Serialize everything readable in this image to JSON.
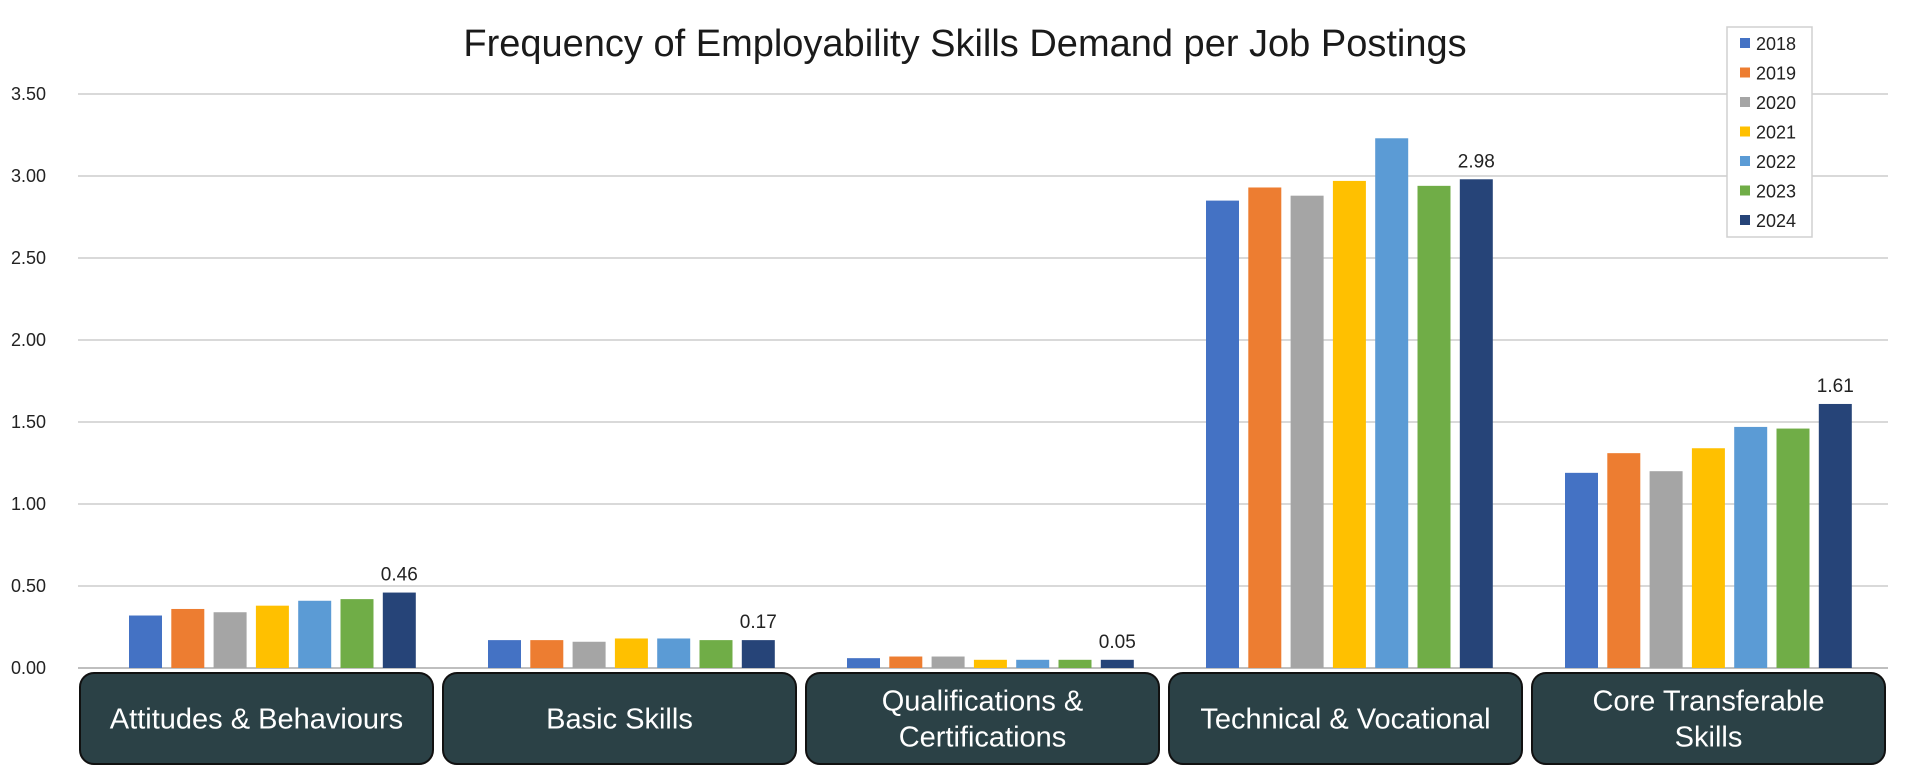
{
  "chart_data": {
    "type": "bar",
    "title": "Frequency of Employability Skills Demand per Job Postings",
    "categories": [
      [
        "Attitudes & Behaviours"
      ],
      [
        "Basic Skills"
      ],
      [
        "Qualifications &",
        "Certifications"
      ],
      [
        "Technical & Vocational"
      ],
      [
        "Core Transferable",
        "Skills"
      ]
    ],
    "series": [
      {
        "name": "2018",
        "color": "#4472C4",
        "values": [
          0.32,
          0.17,
          0.06,
          2.85,
          1.19
        ]
      },
      {
        "name": "2019",
        "color": "#ED7D31",
        "values": [
          0.36,
          0.17,
          0.07,
          2.93,
          1.31
        ]
      },
      {
        "name": "2020",
        "color": "#A5A5A5",
        "values": [
          0.34,
          0.16,
          0.07,
          2.88,
          1.2
        ]
      },
      {
        "name": "2021",
        "color": "#FFC000",
        "values": [
          0.38,
          0.18,
          0.05,
          2.97,
          1.34
        ]
      },
      {
        "name": "2022",
        "color": "#5B9BD5",
        "values": [
          0.41,
          0.18,
          0.05,
          3.23,
          1.47
        ]
      },
      {
        "name": "2023",
        "color": "#70AD47",
        "values": [
          0.42,
          0.17,
          0.05,
          2.94,
          1.46
        ]
      },
      {
        "name": "2024",
        "color": "#264478",
        "values": [
          0.46,
          0.17,
          0.05,
          2.98,
          1.61
        ]
      }
    ],
    "data_labels": {
      "series": "2024",
      "texts": [
        "0.46",
        "0.17",
        "0.05",
        "2.98",
        "1.61"
      ]
    },
    "yticks": [
      "0.00",
      "0.50",
      "1.00",
      "1.50",
      "2.00",
      "2.50",
      "3.00",
      "3.50"
    ],
    "ylim": [
      0,
      3.5
    ],
    "grid": true,
    "legend_position": "top-right",
    "xlabel": "",
    "ylabel": ""
  }
}
